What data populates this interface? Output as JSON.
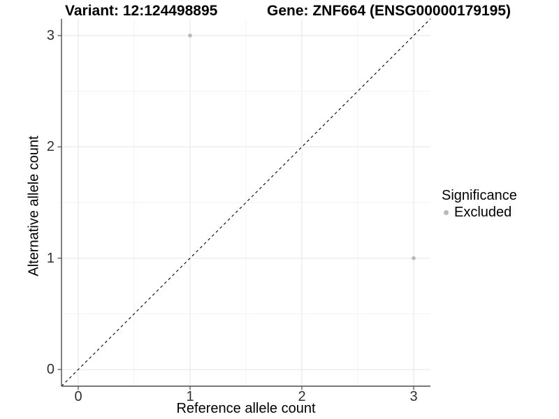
{
  "header": {
    "variant_title": "Variant: 12:124498895",
    "gene_title": "Gene: ZNF664 (ENSG00000179195)"
  },
  "legend": {
    "title": "Significance",
    "items": [
      {
        "label": "Excluded",
        "color": "#b9b9b9"
      }
    ]
  },
  "chart_data": {
    "type": "scatter",
    "title": "Variant: 12:124498895   Gene: ZNF664 (ENSG00000179195)",
    "xlabel": "Reference allele count",
    "ylabel": "Alternative allele count",
    "xlim": [
      -0.15,
      3.15
    ],
    "ylim": [
      -0.15,
      3.15
    ],
    "x_ticks": [
      0,
      1,
      2,
      3
    ],
    "y_ticks": [
      0,
      1,
      2,
      3
    ],
    "x_minor_ticks": [
      0.5,
      1.5,
      2.5
    ],
    "y_minor_ticks": [
      0.5,
      1.5,
      2.5
    ],
    "grid": "major+minor",
    "legend_position": "right",
    "series": [
      {
        "name": "Excluded",
        "color": "#b9b9b9",
        "marker": "circle",
        "points": [
          {
            "x": 1,
            "y": 3
          },
          {
            "x": 3,
            "y": 1
          }
        ]
      }
    ],
    "reference_line": {
      "type": "identity (y = x)",
      "style": "dashed",
      "color": "#000000"
    }
  },
  "style": {
    "background": "#ffffff",
    "grid_major_color": "#e5e5e5",
    "grid_minor_color": "#f2f2f2",
    "axis_color": "#4d4d4d",
    "tick_color": "#4d4d4d",
    "tick_label_color": "#303030",
    "point_color": "#b9b9b9"
  }
}
